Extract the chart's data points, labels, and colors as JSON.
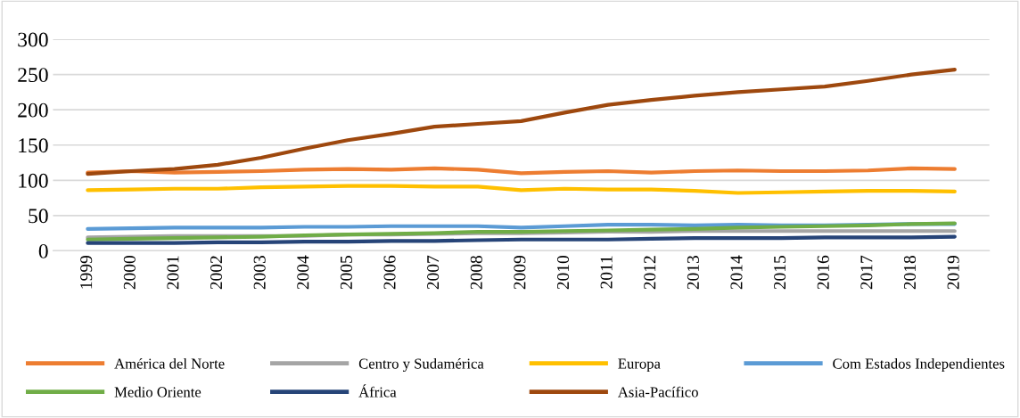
{
  "chart_data": {
    "type": "line",
    "categories": [
      "1999",
      "2000",
      "2001",
      "2002",
      "2003",
      "2004",
      "2005",
      "2006",
      "2007",
      "2008",
      "2009",
      "2010",
      "2011",
      "2012",
      "2013",
      "2014",
      "2015",
      "2016",
      "2017",
      "2018",
      "2019"
    ],
    "series": [
      {
        "name": "América del Norte",
        "color": "#ed7d31",
        "values": [
          111,
          113,
          111,
          112,
          113,
          115,
          116,
          115,
          117,
          115,
          110,
          112,
          113,
          111,
          113,
          114,
          113,
          113,
          114,
          117,
          116
        ]
      },
      {
        "name": "Centro y Sudamérica",
        "color": "#a5a5a5",
        "values": [
          19,
          20,
          21,
          21,
          21,
          21,
          23,
          23,
          24,
          25,
          25,
          26,
          27,
          27,
          28,
          28,
          28,
          28,
          28,
          28,
          28
        ]
      },
      {
        "name": "Europa",
        "color": "#ffc000",
        "values": [
          86,
          87,
          88,
          88,
          90,
          91,
          92,
          92,
          91,
          91,
          86,
          88,
          87,
          87,
          85,
          82,
          83,
          84,
          85,
          85,
          84
        ]
      },
      {
        "name": "Com Estados Independientes",
        "color": "#5b9bd5",
        "values": [
          31,
          32,
          33,
          33,
          33,
          34,
          34,
          35,
          35,
          35,
          33,
          35,
          37,
          37,
          36,
          37,
          36,
          36,
          37,
          38,
          38
        ]
      },
      {
        "name": "Medio Oriente",
        "color": "#70ad47",
        "values": [
          16,
          17,
          18,
          19,
          20,
          22,
          23,
          24,
          25,
          27,
          27,
          28,
          29,
          30,
          31,
          33,
          34,
          35,
          36,
          38,
          39
        ]
      },
      {
        "name": "África",
        "color": "#264478",
        "values": [
          11,
          11,
          11,
          12,
          12,
          13,
          13,
          14,
          14,
          15,
          16,
          16,
          16,
          17,
          18,
          18,
          18,
          19,
          19,
          19,
          20
        ]
      },
      {
        "name": "Asia-Pacífico",
        "color": "#9e480e",
        "values": [
          109,
          113,
          116,
          122,
          132,
          145,
          157,
          166,
          176,
          180,
          184,
          196,
          207,
          214,
          220,
          225,
          229,
          233,
          241,
          250,
          257
        ]
      }
    ],
    "ylim": [
      0,
      300
    ],
    "yticks": [
      0,
      50,
      100,
      150,
      200,
      250,
      300
    ],
    "grid": "y",
    "legend": "bottom",
    "marker": "none",
    "line_style": "solid"
  }
}
